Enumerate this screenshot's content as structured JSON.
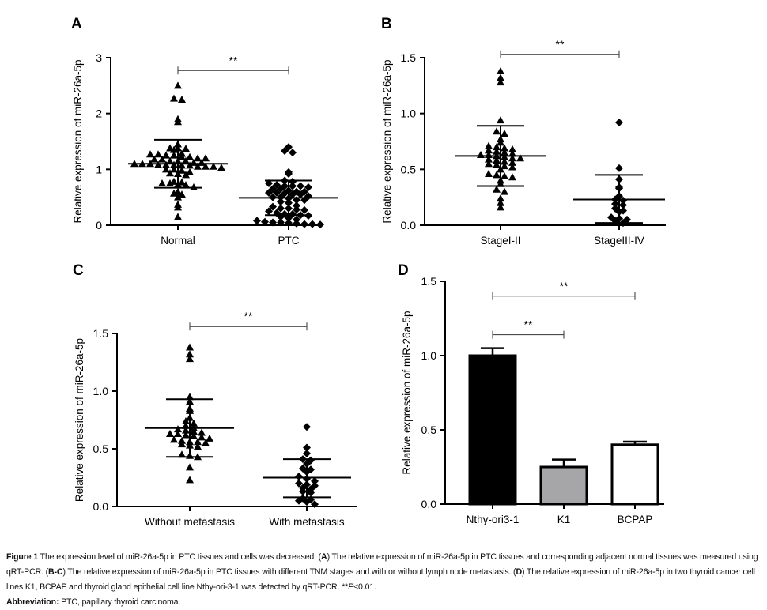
{
  "chart_data": [
    {
      "panel": "A",
      "type": "scatter",
      "ylabel": "Relative expression of miR-26a-5p",
      "ylim": [
        0,
        3
      ],
      "yticks": [
        0,
        1,
        2,
        3
      ],
      "ytick_labels": [
        "0",
        "1",
        "2",
        "3"
      ],
      "categories": [
        "Normal",
        "PTC"
      ],
      "series": [
        {
          "name": "Normal",
          "marker": "triangle",
          "mean": 1.1,
          "sd_upper": 1.53,
          "sd_lower": 0.67,
          "values": [
            2.5,
            2.27,
            2.25,
            1.9,
            1.85,
            1.45,
            1.38,
            1.38,
            1.37,
            1.35,
            1.28,
            1.27,
            1.27,
            1.25,
            1.25,
            1.22,
            1.22,
            1.2,
            1.2,
            1.18,
            1.18,
            1.15,
            1.15,
            1.15,
            1.12,
            1.12,
            1.1,
            1.1,
            1.1,
            1.08,
            1.08,
            1.08,
            1.07,
            1.07,
            1.05,
            1.05,
            1.05,
            1.03,
            1.0,
            1.0,
            0.98,
            0.95,
            0.93,
            0.92,
            0.9,
            0.78,
            0.77,
            0.75,
            0.75,
            0.73,
            0.72,
            0.68,
            0.6,
            0.57,
            0.55,
            0.5,
            0.37,
            0.32,
            0.15
          ]
        },
        {
          "name": "PTC",
          "marker": "diamond",
          "mean": 0.49,
          "sd_upper": 0.8,
          "sd_lower": 0.18,
          "values": [
            1.4,
            1.33,
            1.3,
            0.95,
            0.92,
            0.8,
            0.78,
            0.75,
            0.72,
            0.7,
            0.7,
            0.7,
            0.68,
            0.65,
            0.65,
            0.62,
            0.6,
            0.6,
            0.58,
            0.58,
            0.57,
            0.55,
            0.55,
            0.52,
            0.5,
            0.5,
            0.48,
            0.45,
            0.45,
            0.42,
            0.4,
            0.35,
            0.33,
            0.3,
            0.3,
            0.28,
            0.27,
            0.25,
            0.22,
            0.2,
            0.2,
            0.18,
            0.17,
            0.15,
            0.13,
            0.1,
            0.08,
            0.06,
            0.05,
            0.05,
            0.04,
            0.03,
            0.02,
            0.02,
            0.01
          ]
        }
      ],
      "annotations": [
        {
          "text": "**",
          "from": "Normal",
          "to": "PTC",
          "y": 2.77
        }
      ]
    },
    {
      "panel": "B",
      "type": "scatter",
      "ylabel": "Relative expression of miR-26a-5p",
      "ylim": [
        0,
        1.5
      ],
      "yticks": [
        0,
        0.5,
        1.0,
        1.5
      ],
      "ytick_labels": [
        "0.0",
        "0.5",
        "1.0",
        "1.5"
      ],
      "categories": [
        "StageI-II",
        "StageIII-IV"
      ],
      "series": [
        {
          "name": "StageI-II",
          "marker": "triangle",
          "mean": 0.62,
          "sd_upper": 0.89,
          "sd_lower": 0.35,
          "values": [
            1.38,
            1.32,
            1.28,
            0.94,
            0.84,
            0.82,
            0.77,
            0.74,
            0.71,
            0.7,
            0.69,
            0.68,
            0.67,
            0.66,
            0.65,
            0.64,
            0.63,
            0.63,
            0.62,
            0.61,
            0.6,
            0.6,
            0.59,
            0.58,
            0.57,
            0.56,
            0.55,
            0.54,
            0.53,
            0.52,
            0.5,
            0.46,
            0.45,
            0.44,
            0.43,
            0.4,
            0.37,
            0.32,
            0.3,
            0.24,
            0.2,
            0.16
          ]
        },
        {
          "name": "StageIII-IV",
          "marker": "diamond",
          "mean": 0.23,
          "sd_upper": 0.45,
          "sd_lower": 0.02,
          "values": [
            0.92,
            0.51,
            0.41,
            0.34,
            0.33,
            0.26,
            0.23,
            0.22,
            0.19,
            0.18,
            0.15,
            0.13,
            0.12,
            0.07,
            0.06,
            0.05,
            0.04,
            0.02
          ]
        }
      ],
      "annotations": [
        {
          "text": "**",
          "from": "StageI-II",
          "to": "StageIII-IV",
          "y": 1.53
        }
      ]
    },
    {
      "panel": "C",
      "type": "scatter",
      "ylabel": "Relative expression of miR-26a-5p",
      "ylim": [
        0,
        1.5
      ],
      "yticks": [
        0,
        0.5,
        1.0,
        1.5
      ],
      "ytick_labels": [
        "0.0",
        "0.5",
        "1.0",
        "1.5"
      ],
      "categories": [
        "Without metastasis",
        "With metastasis"
      ],
      "series": [
        {
          "name": "Without metastasis",
          "marker": "triangle",
          "mean": 0.68,
          "sd_upper": 0.93,
          "sd_lower": 0.43,
          "values": [
            1.38,
            1.32,
            1.28,
            0.95,
            0.91,
            0.85,
            0.83,
            0.77,
            0.74,
            0.72,
            0.7,
            0.68,
            0.67,
            0.66,
            0.65,
            0.64,
            0.63,
            0.63,
            0.62,
            0.61,
            0.6,
            0.59,
            0.58,
            0.57,
            0.56,
            0.56,
            0.55,
            0.54,
            0.53,
            0.52,
            0.45,
            0.44,
            0.43,
            0.34,
            0.23
          ]
        },
        {
          "name": "With metastasis",
          "marker": "diamond",
          "mean": 0.25,
          "sd_upper": 0.41,
          "sd_lower": 0.08,
          "values": [
            0.69,
            0.51,
            0.46,
            0.41,
            0.4,
            0.37,
            0.33,
            0.32,
            0.3,
            0.26,
            0.24,
            0.22,
            0.2,
            0.19,
            0.18,
            0.16,
            0.15,
            0.13,
            0.12,
            0.07,
            0.06,
            0.05,
            0.04,
            0.02
          ]
        }
      ],
      "annotations": [
        {
          "text": "**",
          "from": "Without metastasis",
          "to": "With metastasis",
          "y": 1.56
        }
      ]
    },
    {
      "panel": "D",
      "type": "bar",
      "ylabel": "Relative expression of miR-26a-5p",
      "ylim": [
        0,
        1.5
      ],
      "yticks": [
        0,
        0.5,
        1.0,
        1.5
      ],
      "ytick_labels": [
        "0.0",
        "0.5",
        "1.0",
        "1.5"
      ],
      "categories": [
        "Nthy-ori3-1",
        "K1",
        "BCPAP"
      ],
      "values": [
        1.0,
        0.25,
        0.4
      ],
      "errors": [
        0.05,
        0.05,
        0.02
      ],
      "colors": [
        "#000000",
        "#a6a6a8",
        "#ffffff"
      ],
      "annotations": [
        {
          "text": "**",
          "from": "Nthy-ori3-1",
          "to": "BCPAP",
          "y": 1.4
        },
        {
          "text": "**",
          "from": "Nthy-ori3-1",
          "to": "K1",
          "y": 1.14
        }
      ]
    }
  ],
  "caption": {
    "figure_label": "Figure 1",
    "line1_text": " The expression level of miR-26a-5p in PTC tissues and cells was decreased. (",
    "a_label": "A",
    "line1_rest": ") The relative expression of miR-26a-5p in PTC tissues and corresponding adjacent normal tissues was measured using qRT-PCR. (",
    "bc_label": "B-C",
    "line2_rest": ") The relative expression of miR-26a-5p in PTC tissues with different TNM stages and with or without lymph node metastasis. (",
    "d_label": "D",
    "line3_rest": ") The relative expression of miR-26a-5p in two thyroid cancer cell lines K1, BCPAP and thyroid gland epithelial cell line Nthy-ori-3-1 was detected by qRT-PCR. **",
    "p_label": "P",
    "p_rest": "<0.01.",
    "abbrev_label": "Abbreviation:",
    "abbrev_text": " PTC, papillary thyroid carcinoma."
  }
}
